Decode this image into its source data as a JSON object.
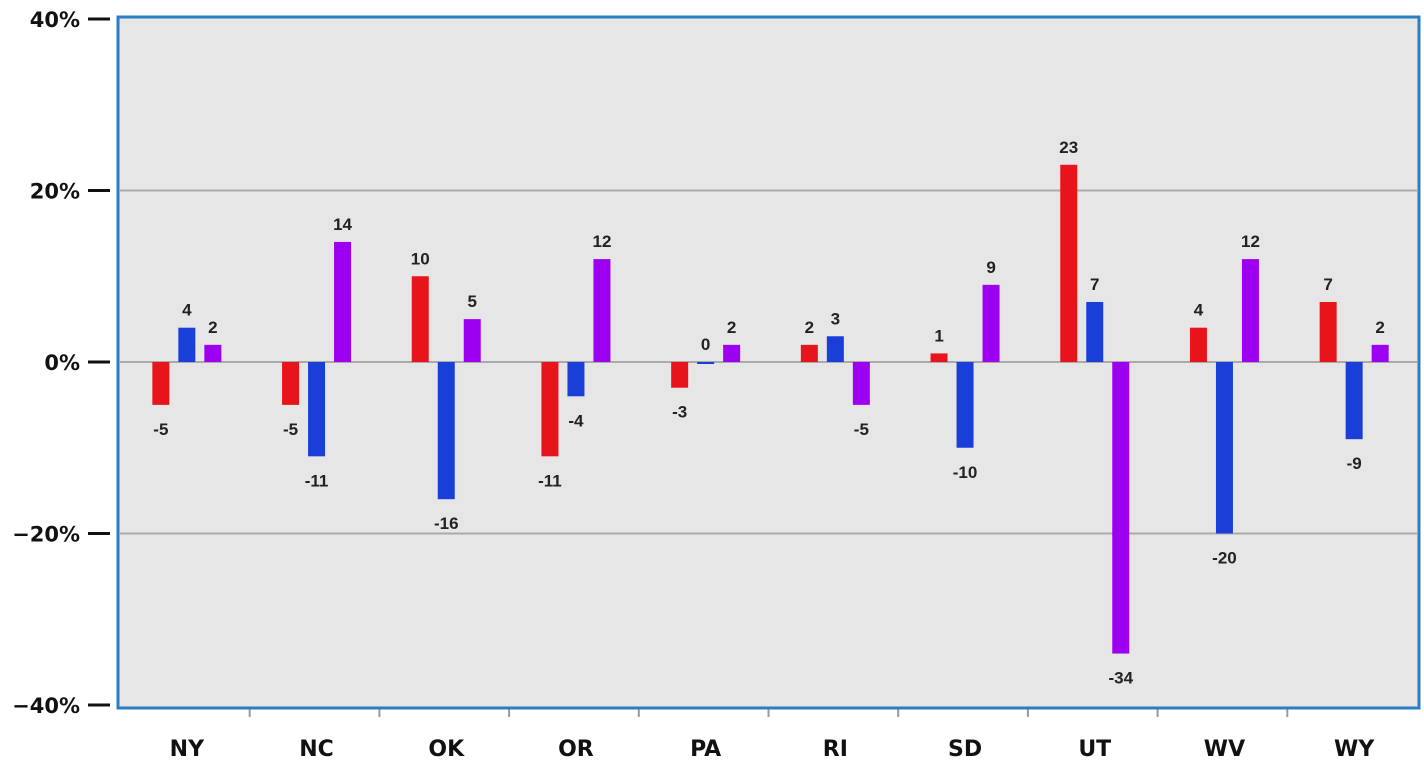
{
  "chart_data": {
    "type": "bar",
    "title": "",
    "xlabel": "",
    "ylabel": "",
    "ylim": [
      -40,
      40
    ],
    "y_ticks": [
      {
        "value": 40,
        "label": "40%"
      },
      {
        "value": 20,
        "label": "20%"
      },
      {
        "value": 0,
        "label": "0%"
      },
      {
        "value": -20,
        "label": "−20%"
      },
      {
        "value": -40,
        "label": "−40%"
      }
    ],
    "grid": "horizontal lines at 20, 0, -20",
    "legend": "none",
    "categories": [
      "NY",
      "NC",
      "OK",
      "OR",
      "PA",
      "RI",
      "SD",
      "UT",
      "WV",
      "WY"
    ],
    "series": [
      {
        "color": "#e8141c",
        "values": [
          -5,
          -5,
          10,
          -11,
          -3,
          2,
          1,
          23,
          4,
          7
        ],
        "labels": [
          "-5",
          "-5",
          "10",
          "-11",
          "-3",
          "2",
          "1",
          "23",
          "4",
          "7"
        ]
      },
      {
        "color": "#1a3fd9",
        "values": [
          4,
          -11,
          -16,
          -4,
          0,
          3,
          -10,
          7,
          -20,
          -9
        ],
        "labels": [
          "4",
          "-11",
          "-16",
          "-4",
          "0",
          "3",
          "-10",
          "7",
          "-20",
          "-9"
        ]
      },
      {
        "color": "#9d00f0",
        "values": [
          2,
          14,
          5,
          12,
          2,
          -5,
          9,
          -34,
          12,
          2
        ],
        "labels": [
          "2",
          "14",
          "5",
          "12",
          "2",
          "-5",
          "9",
          "-34",
          "12",
          "2"
        ]
      }
    ],
    "colors": {
      "plot_background": "#e6e6e6",
      "frame": "#2a7fc4",
      "gridline": "#aaaaaa"
    }
  }
}
